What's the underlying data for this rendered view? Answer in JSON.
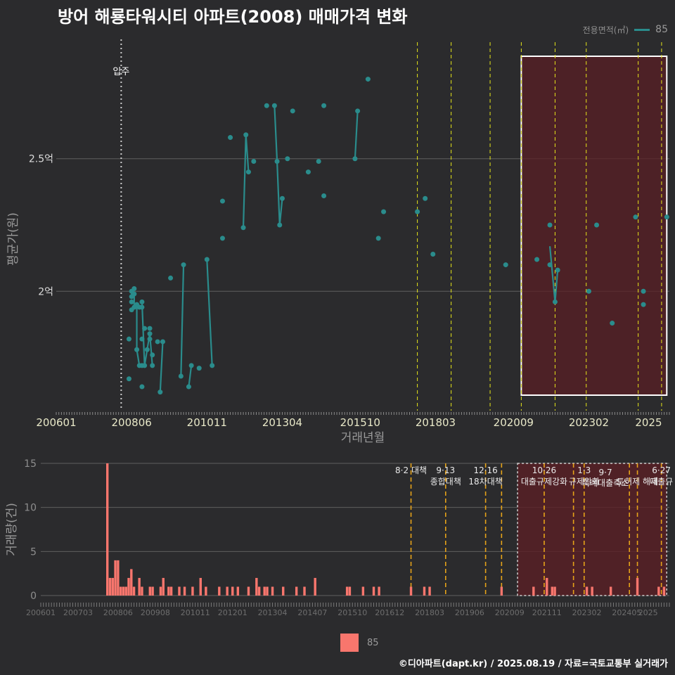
{
  "title": "방어 해룡타워시티 아파트(2008) 매매가격 변화",
  "footer": "©디아파트(dapt.kr) / 2025.08.19 / 자료=국토교통부 실거래가",
  "legend": {
    "title": "전용면적(㎡)",
    "series_label": "85",
    "bar_label": "85"
  },
  "colors": {
    "line": "#2a8c8c",
    "bar": "#f8766d",
    "policy_line_top": "#e6e619",
    "policy_line_bottom": "#e6a319",
    "shade": "#5a1f24",
    "background": "#2b2b2d"
  },
  "chart_data": [
    {
      "type": "line",
      "xlabel": "거래년월",
      "ylabel": "평균가(원)",
      "x_ticks": [
        "200601",
        "200806",
        "201011",
        "201304",
        "201510",
        "201803",
        "202009",
        "202302",
        "2025"
      ],
      "y_ticks": [
        {
          "value": 2.0,
          "label": "2억"
        },
        {
          "value": 2.5,
          "label": "2.5억"
        }
      ],
      "xlim": [
        "2006-01",
        "2025-09"
      ],
      "ylim": [
        1.55,
        2.95
      ],
      "move_in": {
        "date": "2008-02",
        "label": "입주"
      },
      "highlight": {
        "from": "2020-12",
        "to": "2025-08"
      },
      "policy_dates": [
        "2017-08",
        "2018-09",
        "2019-12",
        "2020-12",
        "2022-01",
        "2023-01",
        "2024-09",
        "2025-06"
      ],
      "series": [
        {
          "name": "85",
          "line_segments": [
            [
              [
                "2008-06",
                1.98
              ],
              [
                "2008-06",
                2.0
              ],
              [
                "2008-07",
                1.99
              ],
              [
                "2008-07",
                1.94
              ],
              [
                "2008-08",
                1.95
              ],
              [
                "2008-08",
                1.78
              ],
              [
                "2008-09",
                1.72
              ]
            ],
            [
              [
                "2008-10",
                1.96
              ],
              [
                "2008-11",
                1.72
              ],
              [
                "2008-12",
                1.78
              ],
              [
                "2009-01",
                1.84
              ],
              [
                "2009-02",
                1.72
              ]
            ],
            [
              [
                "2009-05",
                1.62
              ],
              [
                "2009-06",
                1.81
              ]
            ],
            [
              [
                "2010-01",
                1.68
              ],
              [
                "2010-02",
                2.1
              ]
            ],
            [
              [
                "2010-04",
                1.64
              ],
              [
                "2010-05",
                1.72
              ]
            ],
            [
              [
                "2010-11",
                2.12
              ],
              [
                "2011-01",
                1.72
              ]
            ],
            [
              [
                "2012-01",
                2.24
              ],
              [
                "2012-02",
                2.59
              ],
              [
                "2012-03",
                2.45
              ]
            ],
            [
              [
                "2013-01",
                2.7
              ],
              [
                "2013-02",
                2.49
              ],
              [
                "2013-03",
                2.25
              ],
              [
                "2013-04",
                2.35
              ]
            ],
            [
              [
                "2015-08",
                2.5
              ],
              [
                "2015-09",
                2.68
              ]
            ],
            [
              [
                "2021-11",
                2.17
              ],
              [
                "2022-01",
                1.96
              ],
              [
                "2022-02",
                2.08
              ]
            ]
          ],
          "points": [
            [
              "2008-05",
              1.82
            ],
            [
              "2008-05",
              1.67
            ],
            [
              "2008-06",
              1.98
            ],
            [
              "2008-06",
              2.0
            ],
            [
              "2008-06",
              1.96
            ],
            [
              "2008-06",
              1.93
            ],
            [
              "2008-07",
              1.99
            ],
            [
              "2008-07",
              2.01
            ],
            [
              "2008-07",
              1.94
            ],
            [
              "2008-08",
              1.95
            ],
            [
              "2008-08",
              1.78
            ],
            [
              "2008-09",
              1.72
            ],
            [
              "2008-09",
              1.94
            ],
            [
              "2008-10",
              1.72
            ],
            [
              "2008-10",
              1.82
            ],
            [
              "2008-10",
              1.64
            ],
            [
              "2008-10",
              1.96
            ],
            [
              "2008-10",
              1.94
            ],
            [
              "2008-11",
              1.86
            ],
            [
              "2008-11",
              1.72
            ],
            [
              "2008-12",
              1.78
            ],
            [
              "2009-01",
              1.84
            ],
            [
              "2009-01",
              1.86
            ],
            [
              "2009-01",
              1.82
            ],
            [
              "2009-02",
              1.72
            ],
            [
              "2009-02",
              1.76
            ],
            [
              "2009-04",
              1.81
            ],
            [
              "2009-05",
              1.62
            ],
            [
              "2009-06",
              1.81
            ],
            [
              "2009-09",
              2.05
            ],
            [
              "2010-01",
              1.68
            ],
            [
              "2010-02",
              2.1
            ],
            [
              "2010-04",
              1.64
            ],
            [
              "2010-05",
              1.72
            ],
            [
              "2010-08",
              1.71
            ],
            [
              "2010-11",
              2.12
            ],
            [
              "2011-01",
              1.72
            ],
            [
              "2011-05",
              2.34
            ],
            [
              "2011-05",
              2.2
            ],
            [
              "2011-08",
              2.58
            ],
            [
              "2012-01",
              2.24
            ],
            [
              "2012-02",
              2.59
            ],
            [
              "2012-03",
              2.45
            ],
            [
              "2012-05",
              2.49
            ],
            [
              "2012-10",
              2.7
            ],
            [
              "2013-01",
              2.7
            ],
            [
              "2013-02",
              2.49
            ],
            [
              "2013-03",
              2.25
            ],
            [
              "2013-04",
              2.35
            ],
            [
              "2013-06",
              2.5
            ],
            [
              "2013-08",
              2.68
            ],
            [
              "2014-02",
              2.45
            ],
            [
              "2014-06",
              2.49
            ],
            [
              "2014-08",
              2.7
            ],
            [
              "2014-08",
              2.36
            ],
            [
              "2015-08",
              2.5
            ],
            [
              "2015-09",
              2.68
            ],
            [
              "2016-01",
              2.8
            ],
            [
              "2016-05",
              2.2
            ],
            [
              "2016-07",
              2.3
            ],
            [
              "2017-08",
              2.3
            ],
            [
              "2017-11",
              2.35
            ],
            [
              "2018-02",
              2.14
            ],
            [
              "2020-06",
              2.1
            ],
            [
              "2021-06",
              2.12
            ],
            [
              "2021-11",
              2.25
            ],
            [
              "2021-11",
              2.1
            ],
            [
              "2022-01",
              1.96
            ],
            [
              "2022-02",
              2.08
            ],
            [
              "2023-02",
              2.0
            ],
            [
              "2023-05",
              2.25
            ],
            [
              "2023-11",
              1.88
            ],
            [
              "2024-08",
              2.28
            ],
            [
              "2024-11",
              2.0
            ],
            [
              "2024-11",
              1.95
            ],
            [
              "2025-08",
              2.28
            ]
          ]
        }
      ]
    },
    {
      "type": "bar",
      "xlabel": "",
      "ylabel": "거래량(건)",
      "x_ticks": [
        "200601",
        "200703",
        "200806",
        "200908",
        "201011",
        "201201",
        "201304",
        "201407",
        "201510",
        "201612",
        "201803",
        "201906",
        "202009",
        "202111",
        "202302",
        "202405",
        "2025"
      ],
      "y_ticks": [
        0,
        5,
        10,
        15
      ],
      "ylim": [
        0,
        15
      ],
      "highlight": {
        "from": "2020-12",
        "to": "2025-08"
      },
      "policy_dates": [
        "2017-08",
        "2018-09",
        "2019-12",
        "2020-06",
        "2021-10",
        "2022-09",
        "2023-01",
        "2024-06",
        "2024-09",
        "2025-06"
      ],
      "annotations": [
        {
          "date": "2017-08",
          "lines": [
            "8·2 대책"
          ]
        },
        {
          "date": "2018-09",
          "lines": [
            "9·13",
            "종합대책"
          ]
        },
        {
          "date": "2019-12",
          "lines": [
            "12·16",
            "18차대책"
          ]
        },
        {
          "date": "2021-10",
          "lines": [
            "10·26",
            "대출규제강화"
          ]
        },
        {
          "date": "2023-01",
          "lines": [
            "1·3",
            "규제완화"
          ]
        },
        {
          "date": "2023-09",
          "lines": [
            "9·7",
            "특례대출축소"
          ]
        },
        {
          "date": "2024-09",
          "lines": [
            "",
            "토허제 해제"
          ]
        },
        {
          "date": "2025-06",
          "lines": [
            "6·27",
            "대출규"
          ]
        }
      ],
      "series": [
        {
          "name": "85",
          "bars": [
            [
              "2008-02",
              15
            ],
            [
              "2008-03",
              2
            ],
            [
              "2008-04",
              2
            ],
            [
              "2008-05",
              4
            ],
            [
              "2008-06",
              4
            ],
            [
              "2008-07",
              1
            ],
            [
              "2008-08",
              1
            ],
            [
              "2008-09",
              1
            ],
            [
              "2008-10",
              2
            ],
            [
              "2008-11",
              3
            ],
            [
              "2008-12",
              1
            ],
            [
              "2009-02",
              2
            ],
            [
              "2009-03",
              1
            ],
            [
              "2009-06",
              1
            ],
            [
              "2009-07",
              1
            ],
            [
              "2009-10",
              1
            ],
            [
              "2009-11",
              2
            ],
            [
              "2010-01",
              1
            ],
            [
              "2010-02",
              1
            ],
            [
              "2010-05",
              1
            ],
            [
              "2010-07",
              1
            ],
            [
              "2010-10",
              1
            ],
            [
              "2011-01",
              2
            ],
            [
              "2011-03",
              1
            ],
            [
              "2011-08",
              1
            ],
            [
              "2011-11",
              1
            ],
            [
              "2012-01",
              1
            ],
            [
              "2012-03",
              1
            ],
            [
              "2012-07",
              1
            ],
            [
              "2012-10",
              2
            ],
            [
              "2012-11",
              1
            ],
            [
              "2013-01",
              1
            ],
            [
              "2013-02",
              1
            ],
            [
              "2013-04",
              1
            ],
            [
              "2013-08",
              1
            ],
            [
              "2014-01",
              1
            ],
            [
              "2014-04",
              1
            ],
            [
              "2014-08",
              2
            ],
            [
              "2015-08",
              1
            ],
            [
              "2015-09",
              1
            ],
            [
              "2016-02",
              1
            ],
            [
              "2016-06",
              1
            ],
            [
              "2016-08",
              1
            ],
            [
              "2017-08",
              1
            ],
            [
              "2018-01",
              1
            ],
            [
              "2018-03",
              1
            ],
            [
              "2020-06",
              1
            ],
            [
              "2021-06",
              1
            ],
            [
              "2021-11",
              2
            ],
            [
              "2022-01",
              1
            ],
            [
              "2022-02",
              1
            ],
            [
              "2023-02",
              1
            ],
            [
              "2023-04",
              1
            ],
            [
              "2023-11",
              1
            ],
            [
              "2024-09",
              2
            ],
            [
              "2025-05",
              1
            ],
            [
              "2025-07",
              1
            ]
          ]
        }
      ]
    }
  ]
}
